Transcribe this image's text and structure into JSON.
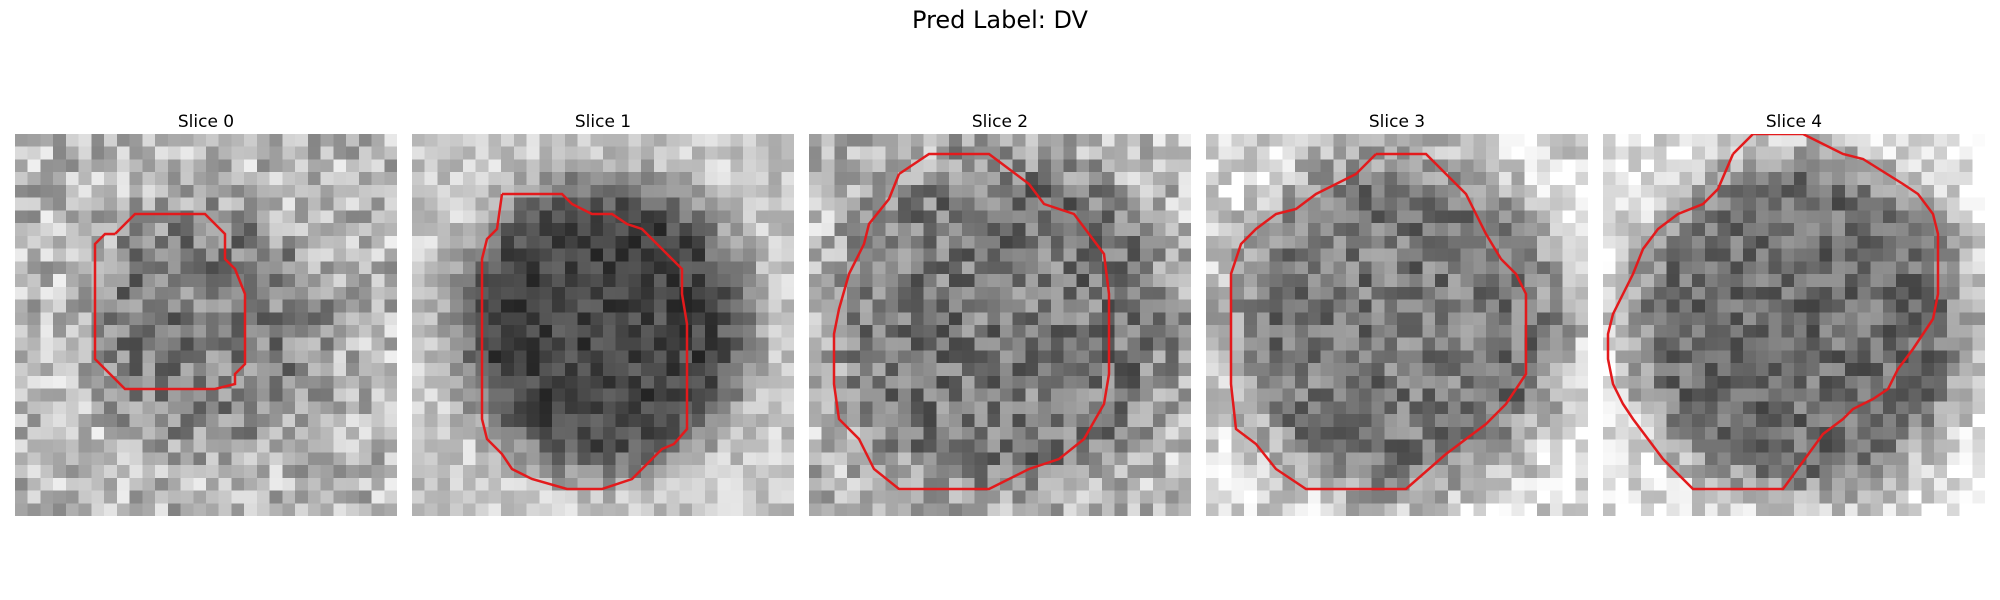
{
  "figure": {
    "title": "Pred Label: DV"
  },
  "panels": [
    {
      "title": "Slice 0"
    },
    {
      "title": "Slice 1"
    },
    {
      "title": "Slice 2"
    },
    {
      "title": "Slice 3"
    },
    {
      "title": "Slice 4"
    }
  ],
  "colors": {
    "contour": "#e31a1c",
    "background": "#ffffff"
  }
}
